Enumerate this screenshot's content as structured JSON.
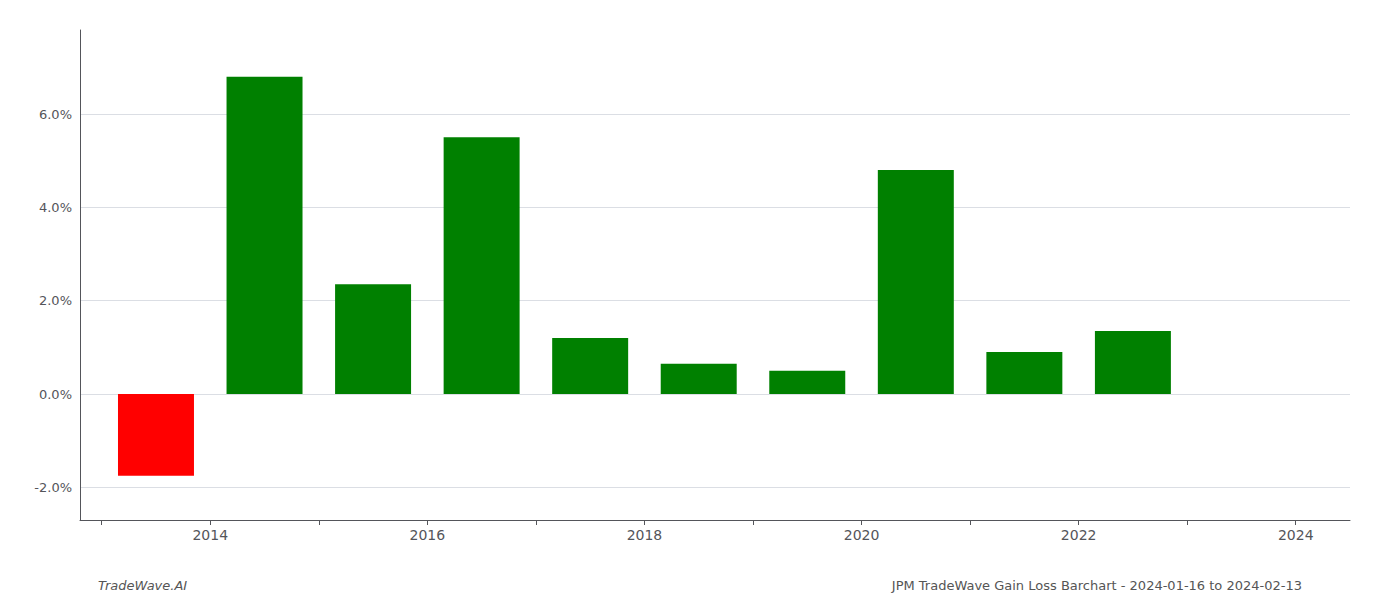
{
  "chart_data": {
    "type": "bar",
    "x": [
      2013.5,
      2014.5,
      2015.5,
      2016.5,
      2017.5,
      2018.5,
      2019.5,
      2020.5,
      2021.5,
      2022.5,
      2023.5
    ],
    "values": [
      -0.0175,
      0.068,
      0.0235,
      0.055,
      0.012,
      0.0065,
      0.005,
      0.048,
      0.009,
      0.0135,
      0.0
    ],
    "colors": [
      "#ff0000",
      "#008000",
      "#008000",
      "#008000",
      "#008000",
      "#008000",
      "#008000",
      "#008000",
      "#008000",
      "#008000",
      "#008000"
    ],
    "xlim": [
      2012.8,
      2024.5
    ],
    "xticks": [
      {
        "value": 2013,
        "label": null
      },
      2014,
      {
        "value": 2015,
        "label": null
      },
      2016,
      {
        "value": 2017,
        "label": null
      },
      2018,
      {
        "value": 2019,
        "label": null
      },
      2020,
      {
        "value": 2021,
        "label": null
      },
      2022,
      {
        "value": 2023,
        "label": null
      },
      2024
    ],
    "ylim": [
      -0.027,
      0.078
    ],
    "yticks": [
      {
        "value": -0.02,
        "label": "-2.0%"
      },
      {
        "value": 0.0,
        "label": "0.0%"
      },
      {
        "value": 0.02,
        "label": "2.0%"
      },
      {
        "value": 0.04,
        "label": "4.0%"
      },
      {
        "value": 0.06,
        "label": "6.0%"
      }
    ],
    "grid": true,
    "annotations": [
      "TradeWave.AI",
      "JPM TradeWave Gain Loss Barchart - 2024-01-16 to 2024-02-13"
    ]
  }
}
